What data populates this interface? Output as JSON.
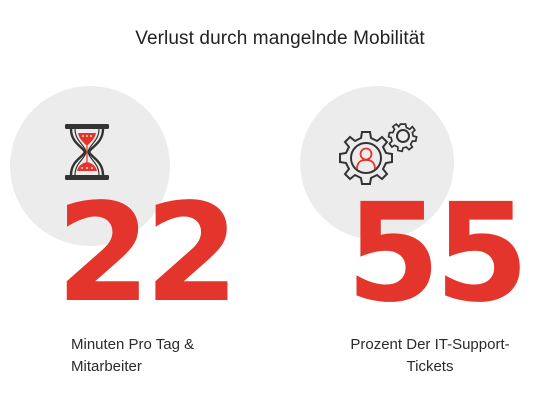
{
  "title": "Verlust durch mangelnde Mobilität",
  "stats": [
    {
      "value": "22",
      "caption_line1": "Minuten Pro Tag &",
      "caption_line2": "Mitarbeiter",
      "icon": "hourglass-icon"
    },
    {
      "value": "55",
      "caption_line1": "Prozent Der IT-Support-",
      "caption_line2": "Tickets",
      "icon": "gears-user-icon"
    }
  ],
  "colors": {
    "accent": "#e3352b",
    "circle": "#ececec",
    "text": "#2b2b2b"
  }
}
